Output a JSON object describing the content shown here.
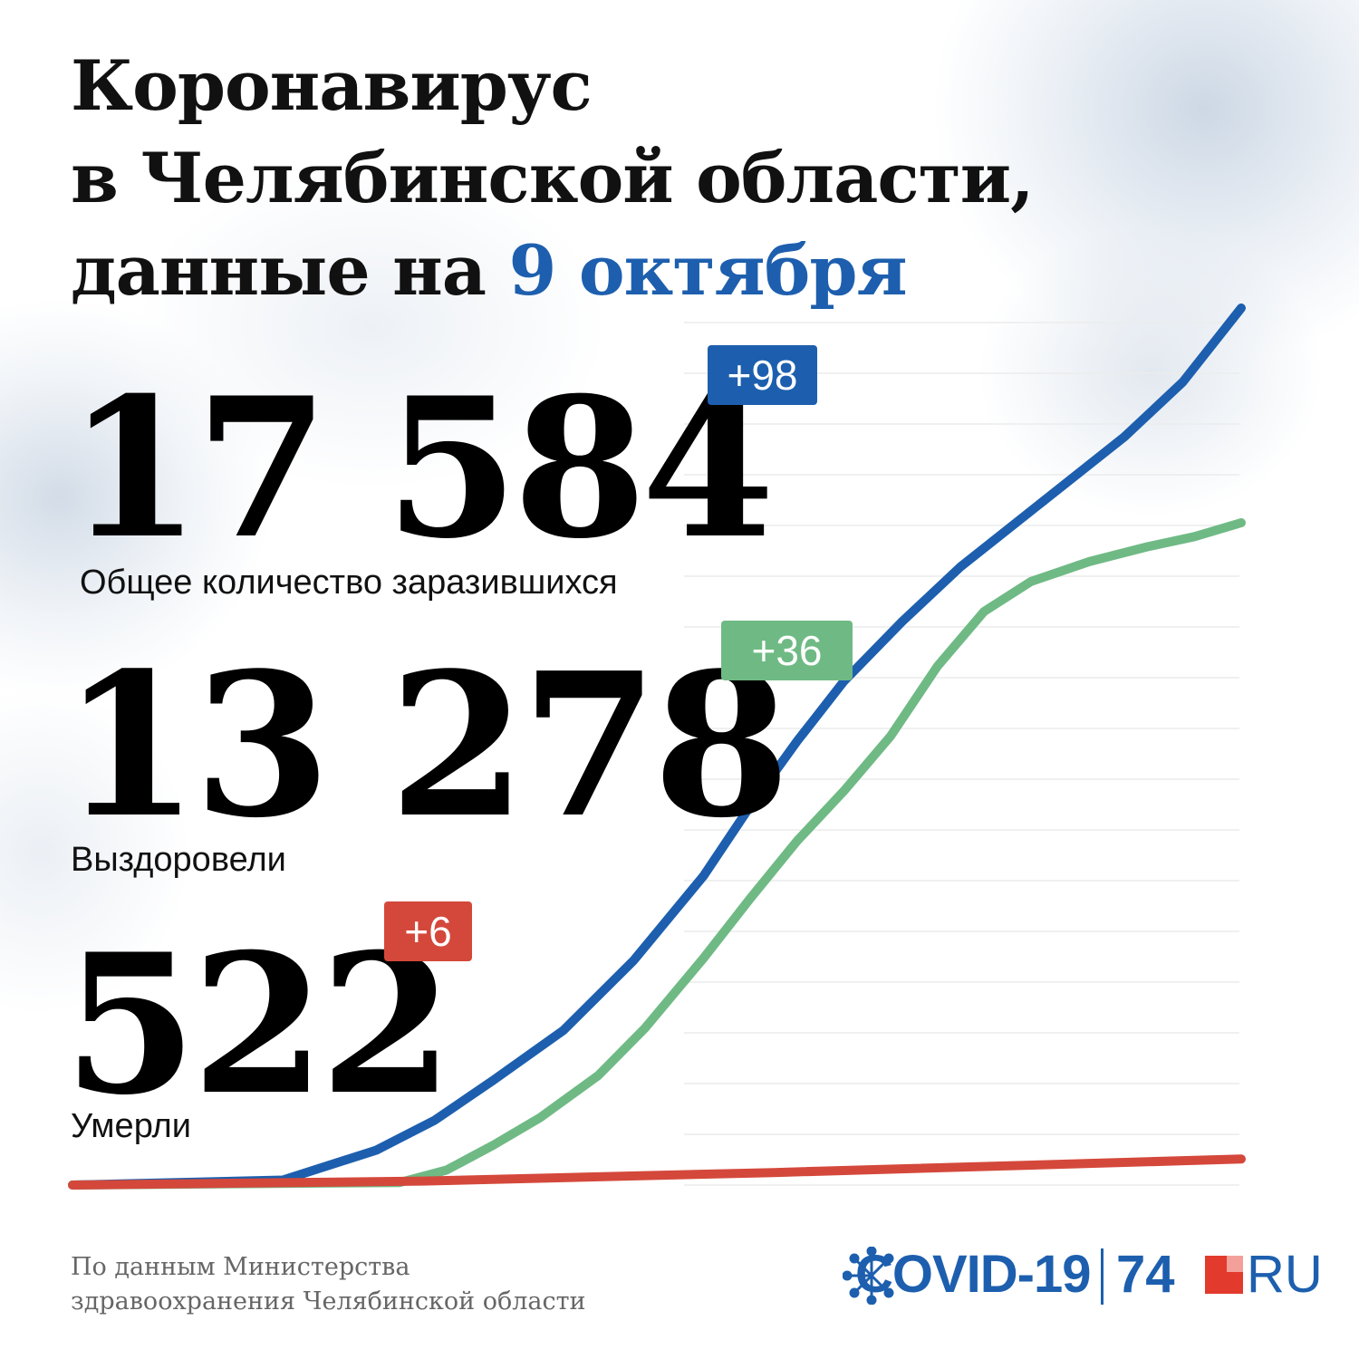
{
  "title": {
    "line1": "Коронавирус",
    "line2": "в Челябинской области,",
    "line3_prefix": "данные на ",
    "line3_date": "9 октября"
  },
  "stats": {
    "total": {
      "value": "17 584",
      "label": "Общее количество заразившихся",
      "delta": "+98",
      "color": "#1d5fae"
    },
    "recovered": {
      "value": "13 278",
      "label": "Выздоровели",
      "delta": "+36",
      "color": "#6fba84"
    },
    "deaths": {
      "value": "522",
      "label": "Умерли",
      "delta": "+6",
      "color": "#d4483b"
    }
  },
  "source": {
    "line1": "По данным Министерства",
    "line2": "здравоохранения Челябинской области"
  },
  "logo": {
    "covid": "COVID-19",
    "number": "74",
    "ru": "RU"
  },
  "chart_data": {
    "type": "line",
    "ylim": [
      0,
      17584
    ],
    "grid": true,
    "series": [
      {
        "name": "Общее количество заразившихся",
        "color": "#1d5fae",
        "points": [
          [
            0,
            0
          ],
          [
            0.18,
            100
          ],
          [
            0.26,
            700
          ],
          [
            0.31,
            1300
          ],
          [
            0.36,
            2100
          ],
          [
            0.42,
            3100
          ],
          [
            0.48,
            4500
          ],
          [
            0.54,
            6200
          ],
          [
            0.58,
            7600
          ],
          [
            0.62,
            8900
          ],
          [
            0.66,
            10100
          ],
          [
            0.71,
            11300
          ],
          [
            0.76,
            12400
          ],
          [
            0.83,
            13700
          ],
          [
            0.9,
            15000
          ],
          [
            0.95,
            16100
          ],
          [
            1,
            17584
          ]
        ]
      },
      {
        "name": "Выздоровели",
        "color": "#6fba84",
        "points": [
          [
            0,
            0
          ],
          [
            0.28,
            50
          ],
          [
            0.32,
            300
          ],
          [
            0.36,
            800
          ],
          [
            0.4,
            1350
          ],
          [
            0.45,
            2200
          ],
          [
            0.49,
            3150
          ],
          [
            0.54,
            4550
          ],
          [
            0.58,
            5750
          ],
          [
            0.62,
            6900
          ],
          [
            0.66,
            7900
          ],
          [
            0.7,
            9000
          ],
          [
            0.74,
            10400
          ],
          [
            0.78,
            11500
          ],
          [
            0.82,
            12100
          ],
          [
            0.87,
            12500
          ],
          [
            0.92,
            12800
          ],
          [
            0.96,
            13000
          ],
          [
            1,
            13278
          ]
        ]
      },
      {
        "name": "Умерли",
        "color": "#d4483b",
        "points": [
          [
            0,
            0
          ],
          [
            0.3,
            80
          ],
          [
            0.6,
            250
          ],
          [
            1,
            522
          ]
        ]
      }
    ]
  }
}
